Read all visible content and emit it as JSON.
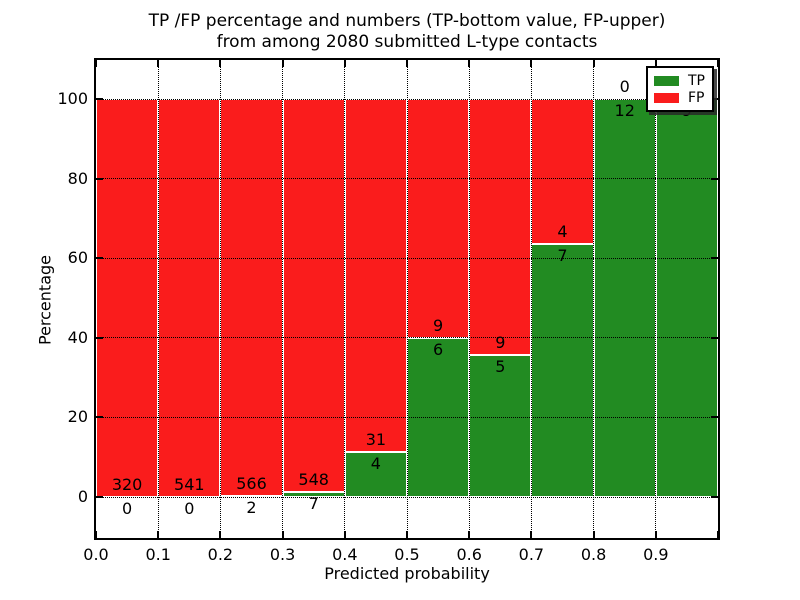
{
  "chart_data": {
    "type": "bar",
    "stacked": true,
    "normalized_to_percent": true,
    "title": "TP /FP percentage and numbers (TP-bottom value, FP-upper) from among 2080 submitted L-type contacts",
    "title_lines": [
      "TP /FP percentage and numbers (TP-bottom value, FP-upper)",
      "from among 2080 submitted L-type contacts"
    ],
    "xlabel": "Predicted probability",
    "ylabel": "Percentage",
    "bin_edges": [
      0.0,
      0.1,
      0.2,
      0.3,
      0.4,
      0.5,
      0.6,
      0.7,
      0.8,
      0.9,
      1.0
    ],
    "x_tick_labels": [
      "0.0",
      "0.1",
      "0.2",
      "0.3",
      "0.4",
      "0.5",
      "0.6",
      "0.7",
      "0.8",
      "0.9"
    ],
    "y_ticks": [
      0,
      20,
      40,
      60,
      80,
      100
    ],
    "xlim": [
      0,
      1
    ],
    "ylim": [
      -10.3,
      109.8
    ],
    "grid": "dotted",
    "legend_position": "upper right",
    "series": [
      {
        "name": "TP",
        "color": "#228b22",
        "values": [
          0,
          0,
          2,
          7,
          4,
          6,
          5,
          7,
          12,
          9
        ]
      },
      {
        "name": "FP",
        "color": "#fa1c1c",
        "values": [
          320,
          541,
          566,
          548,
          31,
          9,
          9,
          4,
          0,
          0
        ]
      }
    ],
    "tp_percent_heights": [
      0,
      0,
      0.35,
      1.26,
      11.43,
      40.0,
      35.71,
      63.64,
      100,
      100
    ]
  }
}
